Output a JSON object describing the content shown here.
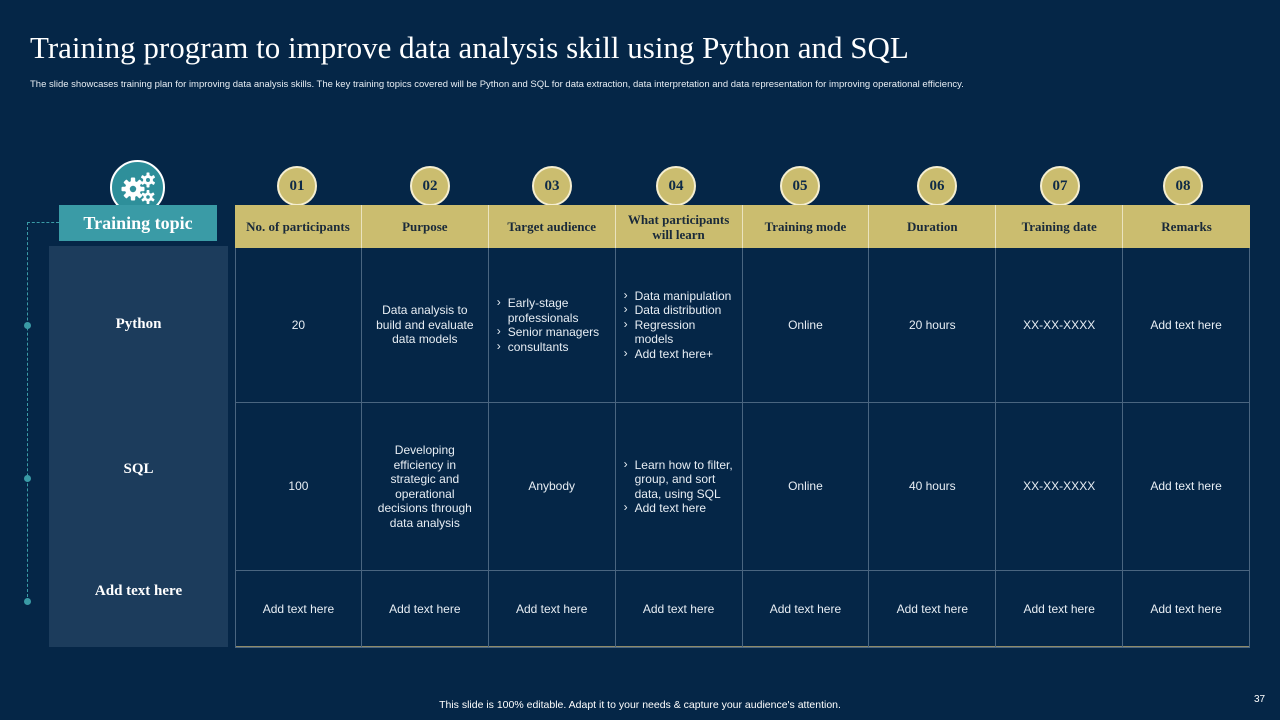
{
  "slide": {
    "title": "Training program to improve data analysis skill using Python and SQL",
    "subtitle": "The slide showcases training plan for improving data analysis skills. The key training topics covered will be Python and SQL  for data extraction, data interpretation and data representation for improving operational efficiency.",
    "footer": "This slide is 100% editable.  Adapt it to your needs & capture your audience's attention.",
    "page_number": "37"
  },
  "topic": {
    "icon": "gears-icon",
    "heading": "Training topic",
    "rows": [
      "Python",
      "SQL",
      "Add text here"
    ]
  },
  "numbers": [
    "01",
    "02",
    "03",
    "04",
    "05",
    "06",
    "07",
    "08"
  ],
  "headers": [
    "No. of participants",
    "Purpose",
    "Target audience",
    "What participants will learn",
    "Training mode",
    "Duration",
    "Training date",
    "Remarks"
  ],
  "rows": [
    {
      "participants": "20",
      "purpose": "Data analysis to build and evaluate data models",
      "audience": [
        "Early-stage professionals",
        "Senior managers",
        "consultants"
      ],
      "learn": [
        "Data manipulation",
        "Data distribution",
        "Regression models",
        "Add text here+"
      ],
      "mode": "Online",
      "duration": "20 hours",
      "date": "XX-XX-XXXX",
      "remarks": "Add text here"
    },
    {
      "participants": "100",
      "purpose": "Developing efficiency in strategic and operational decisions through data analysis",
      "audience": "Anybody",
      "learn": [
        "Learn how to filter, group, and sort data, using SQL",
        "Add text here"
      ],
      "mode": "Online",
      "duration": "40 hours",
      "date": "XX-XX-XXXX",
      "remarks": "Add text here"
    },
    {
      "participants": "Add text here",
      "purpose": "Add text here",
      "audience": "Add text here",
      "learn": "Add text here",
      "mode": "Add text here",
      "duration": "Add text here",
      "date": "Add text here",
      "remarks": "Add text here"
    }
  ],
  "colors": {
    "background": "#052647",
    "header_gold": "#cbbd6f",
    "teal": "#3a9ba6",
    "panel": "#1c3c5c"
  }
}
